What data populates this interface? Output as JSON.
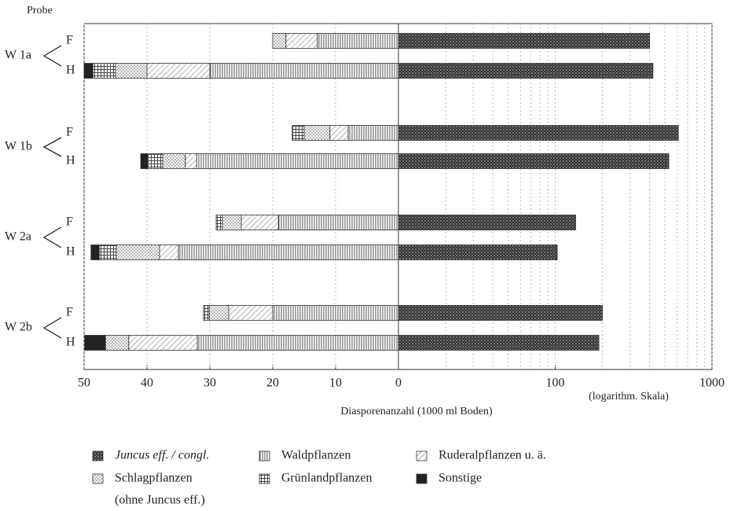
{
  "chart_data": {
    "type": "diverging-bar",
    "row_axis_label": "Probe",
    "xlabel": "Diasporenanzahl (1000 ml Boden)",
    "x2_note": "(logarithm. Skala)",
    "groups": [
      "W 1a",
      "W 1b",
      "W 2a",
      "W 2b"
    ],
    "categories": [
      "F",
      "H",
      "F",
      "H",
      "F",
      "H",
      "F",
      "H"
    ],
    "xlim": [
      50,
      0
    ],
    "xticks": [
      50,
      40,
      30,
      20,
      10,
      0
    ],
    "x2lim": [
      10,
      1000
    ],
    "x2ticks": [
      100,
      1000
    ],
    "x2log": true,
    "grid": true,
    "series": [
      {
        "name": "Juncus eff. / congl.",
        "axis": "x2",
        "pattern": "dark-dots",
        "color": "#333333",
        "values": [
          400,
          420,
          610,
          530,
          135,
          103,
          200,
          190
        ]
      },
      {
        "name": "Waldpflanzen",
        "pattern": "vertical",
        "color": "#555555",
        "values": [
          12.9,
          30,
          8,
          32.1,
          19.1,
          35,
          20,
          32
        ]
      },
      {
        "name": "Ruderalpflanzen u. ä.",
        "pattern": "diagonal",
        "color": "#666666",
        "values": [
          5,
          10,
          2.9,
          1.8,
          5.9,
          3,
          7,
          10.9
        ]
      },
      {
        "name": "Schlagpflanzen",
        "pattern": "dots",
        "color": "#444444",
        "values": [
          2.1,
          5,
          4.1,
          3.6,
          3,
          6.9,
          3.1,
          3.7
        ]
      },
      {
        "name": "Grünlandpflanzen",
        "pattern": "grid",
        "color": "#444444",
        "values": [
          0,
          3.6,
          1.9,
          2.4,
          1,
          2.7,
          0.9,
          0
        ]
      },
      {
        "name": "Sonstige",
        "pattern": "solid",
        "color": "#222222",
        "values": [
          0,
          1.4,
          0,
          1.1,
          0,
          1.3,
          0,
          3.3
        ]
      }
    ],
    "legend_note": "(ohne Juncus eff.)"
  }
}
